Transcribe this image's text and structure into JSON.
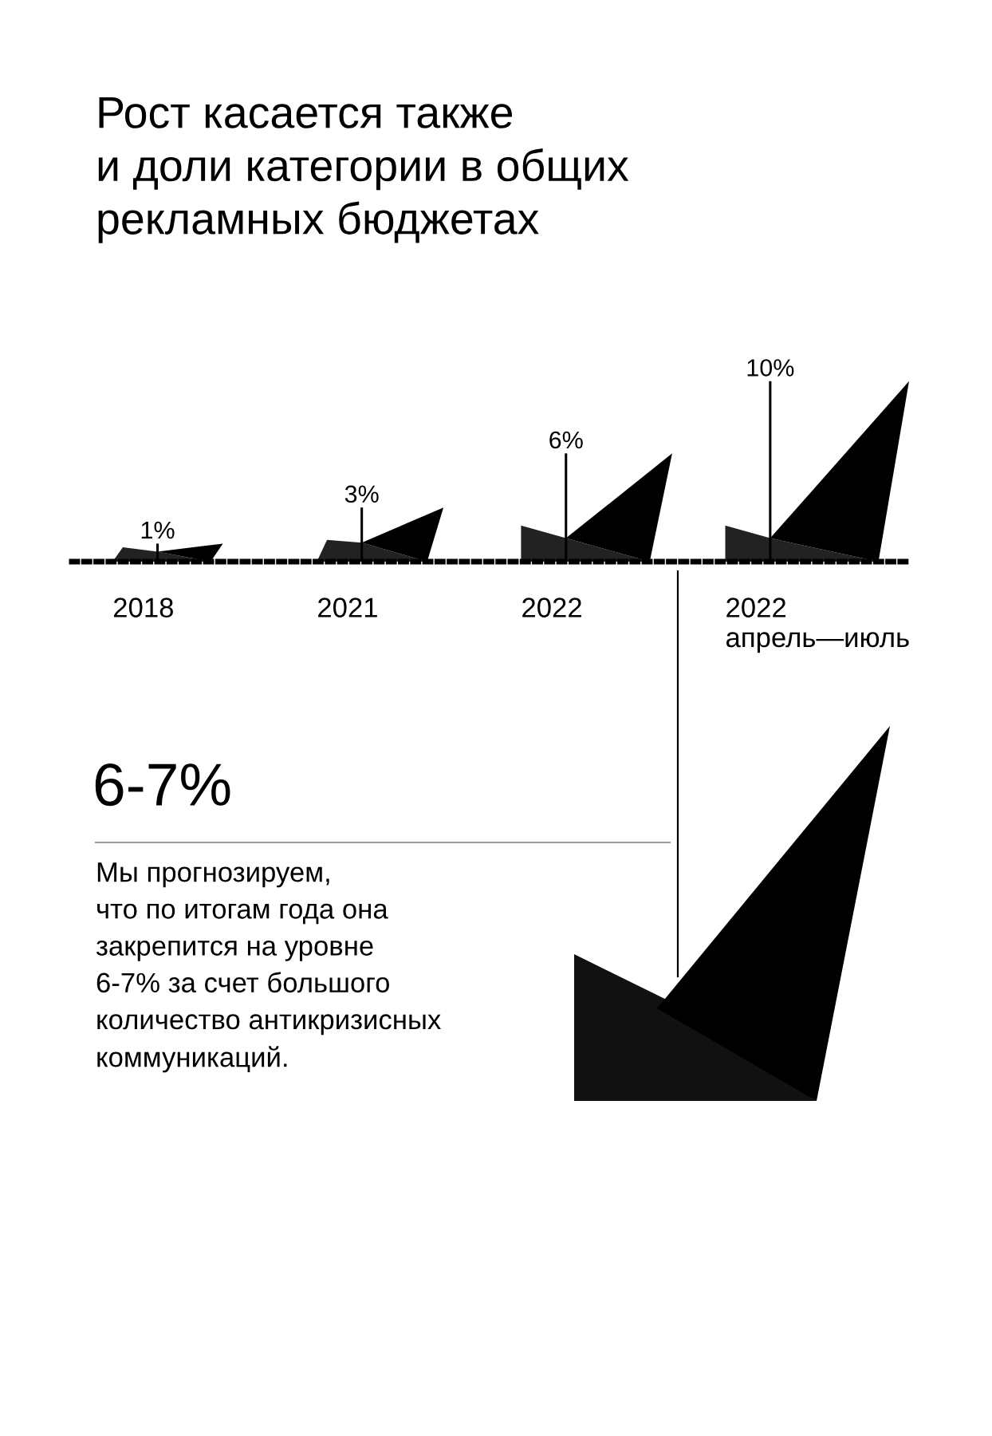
{
  "chart_data": {
    "type": "bar",
    "title": "Рост касается также\nи доли категории в общих\nрекламных бюджетах",
    "categories": [
      "2018",
      "2021",
      "2022",
      "2022\nапрель—июль"
    ],
    "values": [
      1,
      3,
      6,
      10
    ],
    "color": "#000000",
    "value_labels": [
      "1%",
      "3%",
      "6%",
      "10%"
    ],
    "tick_labels": "x",
    "grid": false,
    "annotations": [
      "6-7%",
      "Мы прогнозируем,\nчто по итогам года она\nзакрепится на уровне\n6-7% за счет большого\nколичество антикризисных\nкоммуникаций."
    ]
  }
}
